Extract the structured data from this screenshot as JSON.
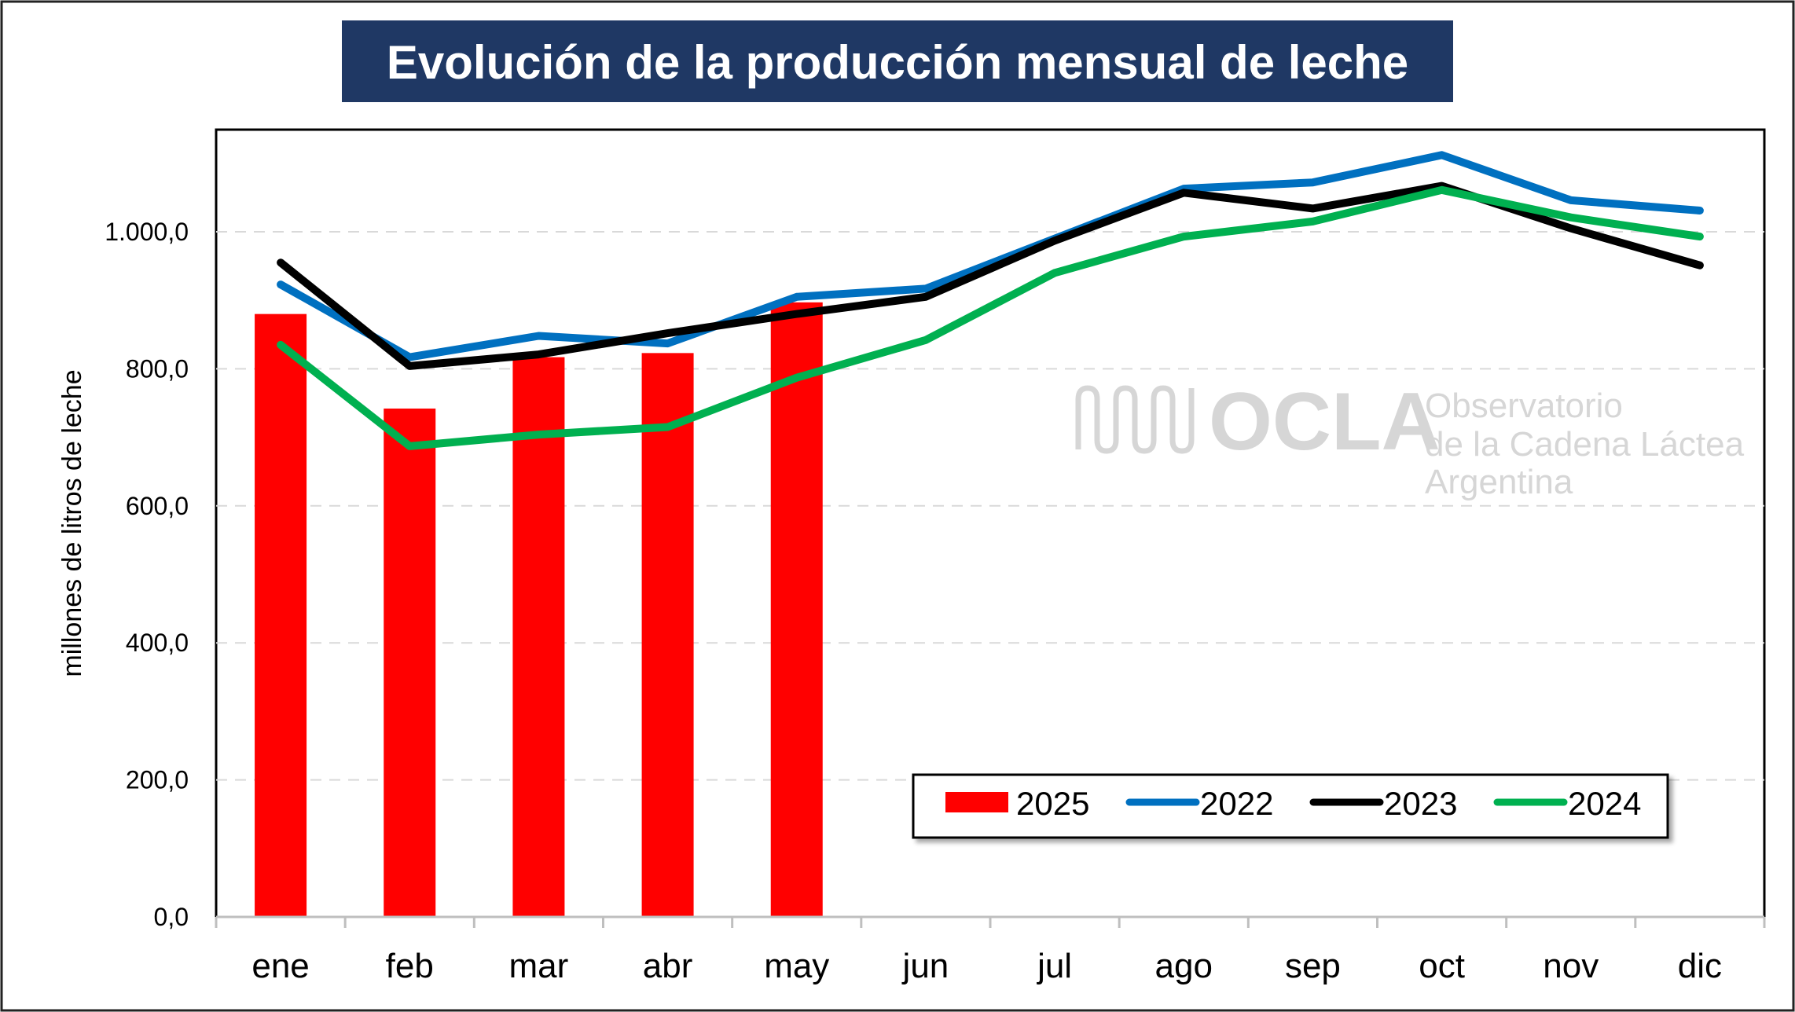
{
  "colors": {
    "title_bg": "#1f3864",
    "bar_2025": "#ff0000",
    "line_2022": "#0070c0",
    "line_2023": "#000000",
    "line_2024": "#00b050",
    "grid": "#d9d9d9",
    "watermark": "#d4d4d4"
  },
  "watermark": {
    "logo": "ocla-logo",
    "name": "OCLA",
    "line1": "Observatorio",
    "line2": "de la Cadena Láctea",
    "line3": "Argentina"
  },
  "chart_data": {
    "type": "bar",
    "title": "Evolución de la producción mensual de leche",
    "xlabel": "",
    "ylabel": "millones de litros de leche",
    "ylim": [
      0,
      1150
    ],
    "yticks": [
      0,
      200,
      400,
      600,
      800,
      1000
    ],
    "ytick_labels": [
      "0,0",
      "200,0",
      "400,0",
      "600,0",
      "800,0",
      "1.000,0"
    ],
    "grid": true,
    "legend_position": "bottom-right",
    "categories": [
      "ene",
      "feb",
      "mar",
      "abr",
      "may",
      "jun",
      "jul",
      "ago",
      "sep",
      "oct",
      "nov",
      "dic"
    ],
    "bars": [
      {
        "name": "2025",
        "color": "#ff0000",
        "values": [
          880,
          742,
          817,
          823,
          897
        ]
      }
    ],
    "series": [
      {
        "name": "2022",
        "type": "line",
        "color": "#0070c0",
        "values": [
          923,
          817,
          848,
          837,
          905,
          917,
          990,
          1063,
          1072,
          1112,
          1046,
          1031
        ]
      },
      {
        "name": "2023",
        "type": "line",
        "color": "#000000",
        "values": [
          955,
          804,
          821,
          852,
          880,
          905,
          987,
          1057,
          1034,
          1067,
          1005,
          951
        ]
      },
      {
        "name": "2024",
        "type": "line",
        "color": "#00b050",
        "values": [
          835,
          687,
          704,
          715,
          787,
          842,
          940,
          993,
          1015,
          1061,
          1021,
          993
        ]
      }
    ],
    "legend": [
      "2025",
      "2022",
      "2023",
      "2024"
    ]
  }
}
